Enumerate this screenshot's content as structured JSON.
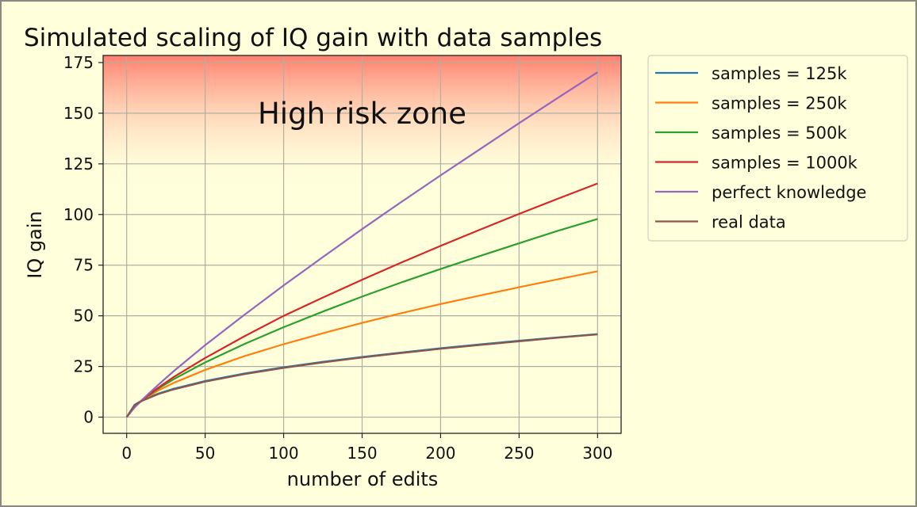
{
  "chart_data": {
    "type": "line",
    "title": "Simulated scaling of IQ gain with data samples",
    "xlabel": "number of edits",
    "ylabel": "IQ gain",
    "xlim": [
      -15,
      315
    ],
    "ylim": [
      -8,
      178.5
    ],
    "xticks": [
      0,
      50,
      100,
      150,
      200,
      250,
      300
    ],
    "yticks": [
      0,
      25,
      50,
      75,
      100,
      125,
      150,
      175
    ],
    "grid": true,
    "legend_placement": "outside-top-right",
    "annotation": {
      "text": "High risk zone",
      "x": 150,
      "y": 150
    },
    "risk_zone": {
      "from": 112,
      "to": 178.5,
      "color": "#ff7f6e"
    },
    "x": [
      0,
      5,
      10,
      20,
      30,
      50,
      75,
      100,
      125,
      150,
      175,
      200,
      225,
      250,
      275,
      300
    ],
    "series": [
      {
        "name": "samples = 125k",
        "color": "#1f77b4",
        "values": [
          0,
          6.1,
          8.4,
          11.6,
          14.0,
          17.8,
          21.5,
          24.6,
          27.3,
          29.7,
          31.9,
          34.0,
          35.9,
          37.7,
          39.4,
          41.0
        ]
      },
      {
        "name": "samples = 250k",
        "color": "#ff7f0e",
        "values": [
          0,
          5.5,
          8.4,
          13.1,
          16.9,
          23.3,
          30.1,
          36.0,
          41.4,
          46.5,
          51.3,
          55.8,
          60.0,
          64.1,
          68.1,
          72.0
        ]
      },
      {
        "name": "samples = 500k",
        "color": "#2ca02c",
        "values": [
          0,
          5.2,
          8.5,
          14.0,
          18.7,
          27.0,
          36.1,
          44.4,
          52.1,
          59.5,
          66.5,
          73.1,
          79.5,
          85.8,
          92.0,
          97.8
        ]
      },
      {
        "name": "samples = 1000k",
        "color": "#d62728",
        "values": [
          0,
          5.0,
          8.5,
          14.5,
          19.8,
          29.2,
          39.9,
          50.0,
          59.0,
          67.8,
          76.3,
          84.5,
          92.5,
          100.3,
          107.9,
          115.3
        ]
      },
      {
        "name": "perfect knowledge",
        "color": "#9467bd",
        "values": [
          0,
          4.7,
          8.7,
          15.9,
          22.7,
          35.5,
          50.5,
          65.0,
          79.0,
          92.8,
          106.2,
          119.3,
          132.2,
          145.1,
          157.7,
          170.2
        ]
      },
      {
        "name": "real data",
        "color": "#8c564b",
        "values": [
          0,
          5.8,
          8.1,
          11.3,
          13.7,
          17.5,
          21.2,
          24.3,
          27.0,
          29.4,
          31.6,
          33.7,
          35.6,
          37.4,
          39.2,
          40.8
        ]
      }
    ]
  }
}
